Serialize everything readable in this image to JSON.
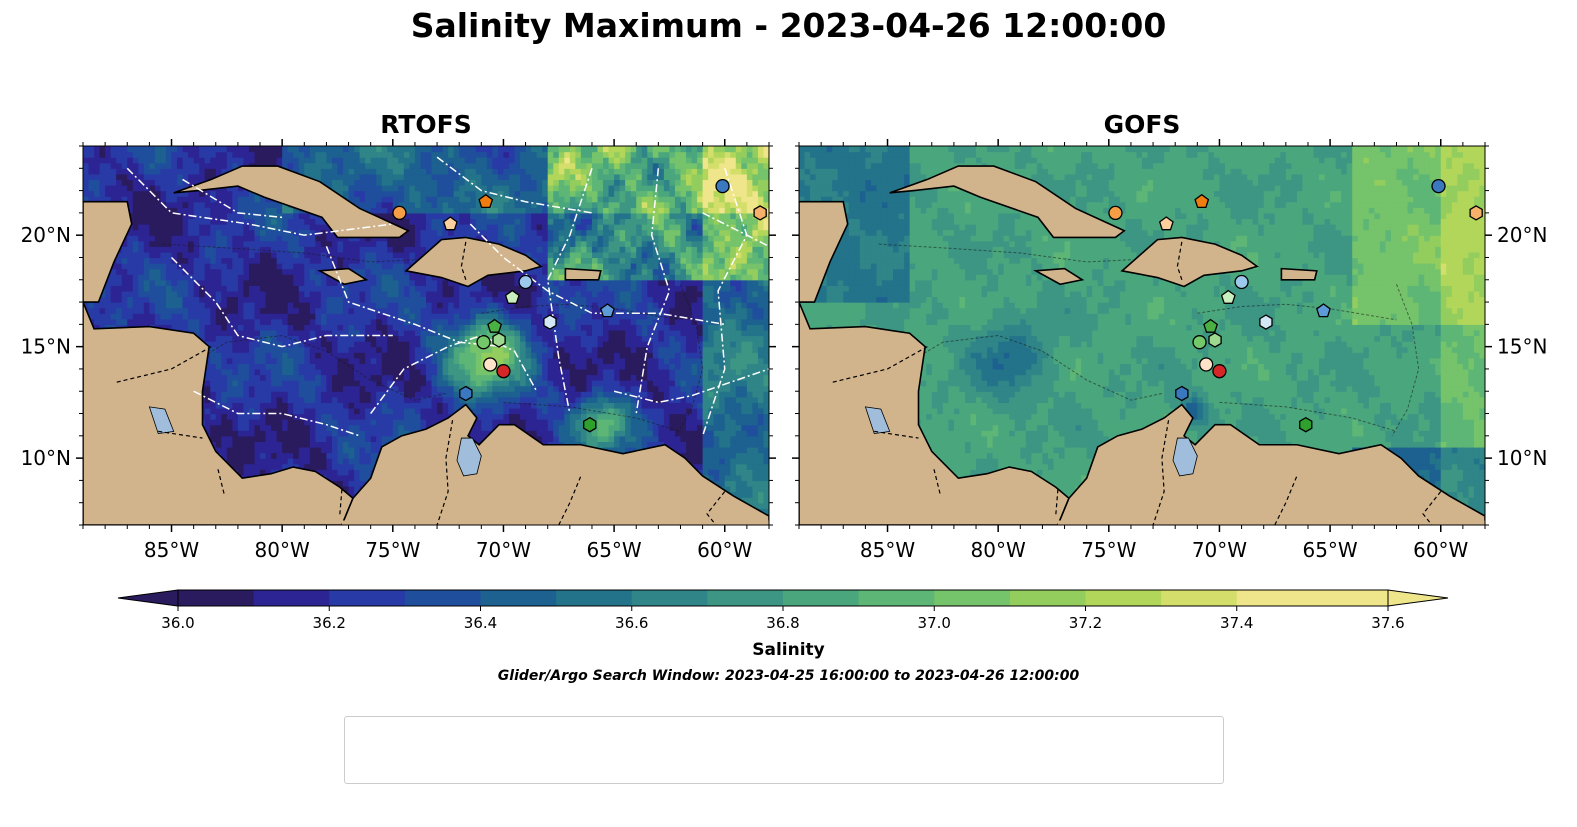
{
  "figure": {
    "title": "Salinity Maximum - 2023-04-26 12:00:00",
    "colorbar_label": "Salinity",
    "search_window": "Glider/Argo Search Window: 2023-04-25 16:00:00 to 2023-04-26 12:00:00"
  },
  "colors": {
    "land": "#d2b48c",
    "lakes": "#a0bedc",
    "eez_lines": "#ffffff",
    "colormap": [
      "#2a1a5e",
      "#2d2494",
      "#283aa6",
      "#1f4f9c",
      "#1c6190",
      "#23738a",
      "#2f8587",
      "#3c9683",
      "#4aa77d",
      "#5db676",
      "#75c36a",
      "#92cd5e",
      "#b1d65a",
      "#d3df6a",
      "#efe58a"
    ]
  },
  "chart_data": [
    {
      "type": "heatmap",
      "title": "RTOFS",
      "variable": "Salinity maximum",
      "xlim": [
        -89,
        -58
      ],
      "ylim": [
        7,
        24
      ],
      "x_ticks": [
        -85,
        -80,
        -75,
        -70,
        -65,
        -60
      ],
      "x_tick_labels": [
        "85°W",
        "80°W",
        "75°W",
        "70°W",
        "65°W",
        "60°W"
      ],
      "y_ticks": [
        10,
        15,
        20
      ],
      "y_tick_labels": [
        "10°N",
        "15°N",
        "20°N"
      ],
      "y_tick_side": "left",
      "overlays": [
        "coastlines",
        "country borders (dashed)",
        "EEZ boundaries (white dash-dot)",
        "bathymetry contours (-1000)"
      ]
    },
    {
      "type": "heatmap",
      "title": "GOFS",
      "variable": "Salinity maximum",
      "xlim": [
        -89,
        -58
      ],
      "ylim": [
        7,
        24
      ],
      "x_ticks": [
        -85,
        -80,
        -75,
        -70,
        -65,
        -60
      ],
      "x_tick_labels": [
        "85°W",
        "80°W",
        "75°W",
        "70°W",
        "65°W",
        "60°W"
      ],
      "y_ticks": [
        10,
        15,
        20
      ],
      "y_tick_labels": [
        "10°N",
        "15°N",
        "20°N"
      ],
      "y_tick_side": "right",
      "overlays": [
        "coastlines",
        "country borders (dashed)",
        "bathymetry contours (-1000)"
      ]
    }
  ],
  "colorbar": {
    "min": 36.0,
    "max": 37.6,
    "step": 0.1,
    "extend": "both",
    "ticks": [
      36.0,
      36.2,
      36.4,
      36.6,
      36.8,
      37.0,
      37.2,
      37.4,
      37.6
    ],
    "tick_labels": [
      "36.0",
      "36.2",
      "36.4",
      "36.6",
      "36.8",
      "37.0",
      "37.2",
      "37.4",
      "37.6"
    ]
  },
  "platforms": [
    {
      "id": "1902313",
      "marker": "circle",
      "color": "#3a78c0",
      "lon": -60.1,
      "lat": 22.2
    },
    {
      "id": "2903766",
      "marker": "hexagon",
      "color": "#3a78c0",
      "lon": -71.7,
      "lat": 12.9
    },
    {
      "id": "3901861",
      "marker": "pentagon",
      "color": "#5d9bd8",
      "lon": -65.3,
      "lat": 16.6
    },
    {
      "id": "3902456",
      "marker": "circle",
      "color": "#9cc9ec",
      "lon": -69.0,
      "lat": 17.9
    },
    {
      "id": "3902457",
      "marker": "hexagon",
      "color": "#d3e8f7",
      "lon": -67.9,
      "lat": 16.1
    },
    {
      "id": "4902113",
      "marker": "pentagon",
      "color": "#f07d0f",
      "lon": -70.8,
      "lat": 21.5
    },
    {
      "id": "4903051",
      "marker": "circle",
      "color": "#f59e46",
      "lon": -74.7,
      "lat": 21.0
    },
    {
      "id": "4903244",
      "marker": "hexagon",
      "color": "#f8b16b",
      "lon": -58.4,
      "lat": 21.0
    },
    {
      "id": "4903333",
      "marker": "pentagon",
      "color": "#fbcf9e",
      "lon": -72.4,
      "lat": 20.5
    },
    {
      "id": "4903350",
      "marker": "circle",
      "color": "#fde3c8",
      "lon": -70.6,
      "lat": 14.2
    },
    {
      "id": "4903629",
      "marker": "hexagon",
      "color": "#2ea02c",
      "lon": -66.1,
      "lat": 11.5
    },
    {
      "id": "5906437",
      "marker": "pentagon",
      "color": "#4bb043",
      "lon": -70.4,
      "lat": 15.9
    },
    {
      "id": "6903134",
      "marker": "circle",
      "color": "#73c86a",
      "lon": -70.9,
      "lat": 15.2
    },
    {
      "id": "6903135",
      "marker": "hexagon",
      "color": "#9dd98e",
      "lon": -70.2,
      "lat": 15.3
    },
    {
      "id": "6903136",
      "marker": "pentagon",
      "color": "#caefbf",
      "lon": -69.6,
      "lat": 17.2
    },
    {
      "id": "6903137",
      "marker": "circle",
      "color": "#d62728",
      "lon": -70.0,
      "lat": 13.9
    }
  ]
}
